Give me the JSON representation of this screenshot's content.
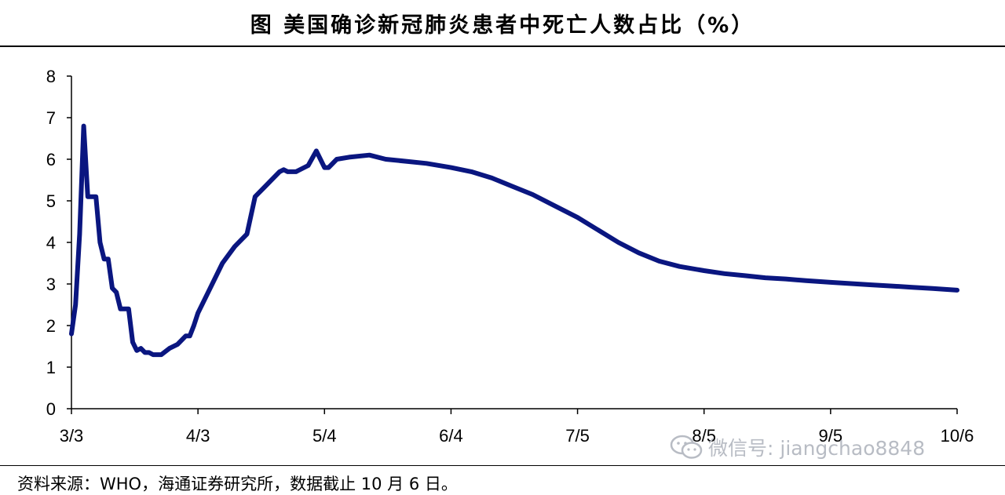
{
  "header": {
    "title": "图 美国确诊新冠肺炎患者中死亡人数占比（%）"
  },
  "footer": {
    "source": "资料来源：WHO，海通证券研究所，数据截止 10 月 6 日。"
  },
  "watermark": {
    "text": "微信号: jiangchao8848",
    "icon": "wechat-icon"
  },
  "colors": {
    "series": "#0a1680",
    "axis": "#000000",
    "background": "#ffffff"
  },
  "chart_data": {
    "type": "line",
    "title": "图 美国确诊新冠肺炎患者中死亡人数占比（%）",
    "xlabel": "",
    "ylabel": "",
    "ylim": [
      0,
      8
    ],
    "yticks": [
      0,
      1,
      2,
      3,
      4,
      5,
      6,
      7,
      8
    ],
    "x_ticks": [
      "3/3",
      "4/3",
      "5/4",
      "6/4",
      "7/5",
      "8/5",
      "9/5",
      "10/6"
    ],
    "x_dates": [
      "2020-03-03",
      "2020-04-03",
      "2020-05-04",
      "2020-06-04",
      "2020-07-05",
      "2020-08-05",
      "2020-09-05",
      "2020-10-06"
    ],
    "grid": false,
    "legend": "none",
    "series": [
      {
        "name": "",
        "x": [
          "2020-03-03",
          "2020-03-04",
          "2020-03-05",
          "2020-03-06",
          "2020-03-07",
          "2020-03-08",
          "2020-03-09",
          "2020-03-10",
          "2020-03-11",
          "2020-03-12",
          "2020-03-13",
          "2020-03-14",
          "2020-03-15",
          "2020-03-16",
          "2020-03-17",
          "2020-03-18",
          "2020-03-19",
          "2020-03-20",
          "2020-03-21",
          "2020-03-22",
          "2020-03-23",
          "2020-03-25",
          "2020-03-27",
          "2020-03-29",
          "2020-03-31",
          "2020-04-01",
          "2020-04-02",
          "2020-04-03",
          "2020-04-06",
          "2020-04-09",
          "2020-04-12",
          "2020-04-15",
          "2020-04-17",
          "2020-04-19",
          "2020-04-21",
          "2020-04-23",
          "2020-04-24",
          "2020-04-25",
          "2020-04-27",
          "2020-04-30",
          "2020-05-02",
          "2020-05-03",
          "2020-05-04",
          "2020-05-05",
          "2020-05-07",
          "2020-05-10",
          "2020-05-15",
          "2020-05-19",
          "2020-05-24",
          "2020-05-29",
          "2020-06-04",
          "2020-06-09",
          "2020-06-14",
          "2020-06-19",
          "2020-06-24",
          "2020-06-29",
          "2020-07-05",
          "2020-07-10",
          "2020-07-15",
          "2020-07-20",
          "2020-07-25",
          "2020-07-30",
          "2020-08-05",
          "2020-08-10",
          "2020-08-15",
          "2020-08-20",
          "2020-08-25",
          "2020-08-30",
          "2020-09-05",
          "2020-09-10",
          "2020-09-15",
          "2020-09-20",
          "2020-09-25",
          "2020-09-30",
          "2020-10-06"
        ],
        "values": [
          1.8,
          2.5,
          4.2,
          6.8,
          5.1,
          5.1,
          5.1,
          4.0,
          3.6,
          3.6,
          2.9,
          2.8,
          2.4,
          2.4,
          2.4,
          1.6,
          1.4,
          1.45,
          1.35,
          1.35,
          1.3,
          1.3,
          1.45,
          1.55,
          1.75,
          1.75,
          2.0,
          2.3,
          2.9,
          3.5,
          3.9,
          4.2,
          5.1,
          5.3,
          5.5,
          5.7,
          5.75,
          5.7,
          5.7,
          5.85,
          6.2,
          6.0,
          5.8,
          5.8,
          6.0,
          6.05,
          6.1,
          6.0,
          5.95,
          5.9,
          5.8,
          5.7,
          5.55,
          5.35,
          5.15,
          4.9,
          4.6,
          4.3,
          4.0,
          3.75,
          3.55,
          3.42,
          3.32,
          3.25,
          3.2,
          3.15,
          3.12,
          3.08,
          3.04,
          3.01,
          2.98,
          2.95,
          2.92,
          2.89,
          2.85
        ]
      }
    ]
  }
}
